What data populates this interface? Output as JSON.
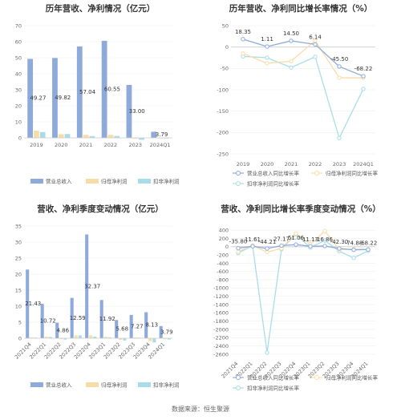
{
  "colors": {
    "revenue": "#8eaadb",
    "netprofit": "#f8dca8",
    "deducted": "#a8dde8",
    "axis": "#cccccc",
    "grid": "#eeeeee"
  },
  "footer": {
    "source": "数据来源：恒生聚源"
  },
  "chart_data": [
    {
      "type": "bar",
      "title": "历年营收、净利情况（亿元）",
      "categories": [
        "2019",
        "2020",
        "2021",
        "2022",
        "2023",
        "2024Q1"
      ],
      "ylim": [
        0,
        70
      ],
      "yticks": [
        0,
        10,
        20,
        30,
        40,
        50,
        60,
        70
      ],
      "series": [
        {
          "name": "营业总收入",
          "values": [
            49.27,
            49.82,
            57.04,
            60.55,
            33.0,
            3.79
          ],
          "labels": [
            "49.27",
            "49.82",
            "57.04",
            "60.55",
            "33.00",
            "3.79"
          ]
        },
        {
          "name": "归母净利润",
          "values": [
            4.5,
            2.3,
            1.9,
            1.9,
            -0.5,
            -0.3
          ]
        },
        {
          "name": "扣非净利润",
          "values": [
            3.6,
            2.4,
            1.1,
            1.2,
            -1.2,
            -0.4
          ]
        }
      ]
    },
    {
      "type": "line",
      "title": "历年营收、净利同比增长率情况（%）",
      "categories": [
        "2019",
        "2020",
        "2021",
        "2022",
        "2023",
        "2024Q1"
      ],
      "ylim": [
        -250,
        50
      ],
      "yticks": [
        -250,
        -200,
        -150,
        -100,
        -50,
        0,
        50
      ],
      "series": [
        {
          "name": "营业总收入同比增长率",
          "values": [
            18.35,
            1.11,
            14.5,
            6.14,
            -45.5,
            -68.22
          ],
          "labels": [
            "18.35",
            "1.11",
            "14.50",
            "6.14",
            "-45.50",
            "-68.22"
          ]
        },
        {
          "name": "归母净利润同比增长率",
          "values": [
            -15,
            -38,
            -33,
            15,
            -72,
            -72
          ]
        },
        {
          "name": "扣非净利润同比增长率",
          "values": [
            -22,
            -25,
            -48,
            -23,
            -213,
            -98
          ]
        }
      ]
    },
    {
      "type": "bar",
      "title": "营收、净利季度变动情况（亿元）",
      "categories": [
        "2021Q4",
        "2022Q1",
        "2022Q2",
        "2022Q3",
        "2022Q4",
        "2023Q1",
        "2023Q2",
        "2023Q3",
        "2023Q4",
        "2024Q1"
      ],
      "ylim": [
        0,
        35
      ],
      "yticks": [
        0,
        5,
        10,
        15,
        20,
        25,
        30,
        35
      ],
      "series": [
        {
          "name": "营业总收入",
          "values": [
            21.43,
            10.72,
            4.86,
            12.59,
            32.37,
            11.92,
            5.68,
            7.27,
            8.13,
            3.79
          ],
          "labels": [
            "21.43",
            "10.72",
            "4.86",
            "12.59",
            "32.37",
            "11.92",
            "5.68",
            "7.27",
            "8.13",
            "3.79"
          ]
        },
        {
          "name": "归母净利润",
          "values": [
            0.3,
            0.5,
            -0.3,
            0.9,
            0.9,
            0.5,
            -0.5,
            0.3,
            -0.9,
            -0.3
          ]
        },
        {
          "name": "扣非净利润",
          "values": [
            0.2,
            0.4,
            -0.4,
            0.9,
            0.5,
            0.3,
            -0.7,
            0.2,
            -1.3,
            -0.4
          ]
        }
      ]
    },
    {
      "type": "line",
      "title": "营收、净利同比增长率季度变动情况（%）",
      "categories": [
        "2021Q4",
        "2022Q1",
        "2022Q2",
        "2022Q3",
        "2022Q4",
        "2023Q1",
        "2023Q2",
        "2023Q3",
        "2023Q4",
        "2024Q1"
      ],
      "ylim": [
        -2600,
        500
      ],
      "yticks": [
        -2600,
        -2400,
        -2200,
        -2000,
        -1800,
        -1600,
        -1400,
        -1200,
        -1000,
        -800,
        -600,
        -400,
        -200,
        0,
        200,
        400
      ],
      "series": [
        {
          "name": "营业总收入同比增长率",
          "values": [
            -35.8,
            11.61,
            -44.21,
            27.17,
            51.06,
            11.13,
            16.86,
            -42.3,
            -74.88,
            -68.22
          ],
          "labels": [
            "-35.80",
            "11.61",
            "-44.21",
            "27.17",
            "51.06",
            "11.13",
            "16.86",
            "-42.30",
            "-74.88",
            "-68.22"
          ]
        },
        {
          "name": "归母净利润同比增长率",
          "values": [
            -120,
            30,
            -130,
            -40,
            320,
            60,
            380,
            -70,
            -60,
            -70
          ]
        },
        {
          "name": "扣非净利润同比增长率",
          "values": [
            -150,
            20,
            -2560,
            -60,
            300,
            -20,
            150,
            -110,
            -270,
            -100
          ]
        }
      ]
    }
  ]
}
